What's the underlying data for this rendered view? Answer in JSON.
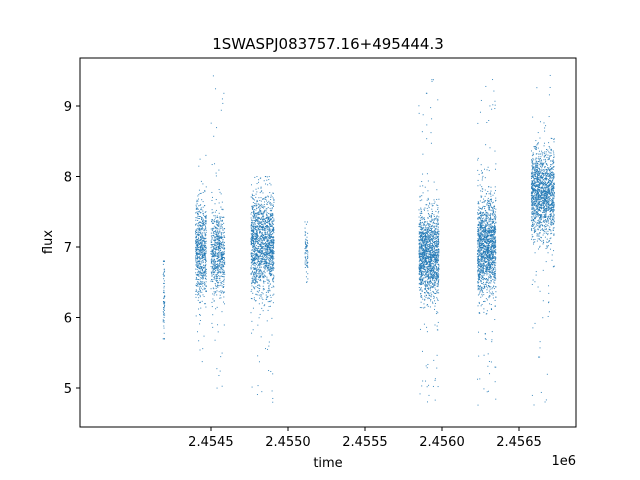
{
  "chart_data": {
    "type": "scatter",
    "title": "1SWASPJ083757.16+495444.3",
    "xlabel": "time",
    "ylabel": "flux",
    "x_offset_label": "1e6",
    "xlim": [
      2.45365,
      2.45687
    ],
    "ylim": [
      4.45,
      9.68
    ],
    "x_ticks": [
      2.4545,
      2.455,
      2.4555,
      2.456,
      2.4565
    ],
    "x_tick_labels": [
      "2.4545",
      "2.4550",
      "2.4555",
      "2.4560",
      "2.4565"
    ],
    "y_ticks": [
      5,
      6,
      7,
      8,
      9
    ],
    "y_tick_labels": [
      "5",
      "6",
      "7",
      "8",
      "9"
    ],
    "grid": false,
    "legend": "none",
    "series_color": "#1f77b4",
    "point_clusters": [
      {
        "x_range": [
          2.45419,
          2.4542
        ],
        "y_center": 6.3,
        "y_spread": 0.35,
        "y_min": 5.7,
        "y_max": 6.8,
        "density": "sparse"
      },
      {
        "x_range": [
          2.4544,
          2.45447
        ],
        "y_center": 6.95,
        "y_spread": 0.35,
        "y_min": 5.3,
        "y_max": 8.3,
        "density": "medium"
      },
      {
        "x_range": [
          2.4545,
          2.45459
        ],
        "y_center": 6.9,
        "y_spread": 0.3,
        "y_min": 4.85,
        "y_max": 9.45,
        "density": "medium"
      },
      {
        "x_range": [
          2.45476,
          2.45491
        ],
        "y_center": 7.05,
        "y_spread": 0.35,
        "y_min": 4.8,
        "y_max": 8.0,
        "density": "dense"
      },
      {
        "x_range": [
          2.45511,
          2.45513
        ],
        "y_center": 6.95,
        "y_spread": 0.2,
        "y_min": 6.5,
        "y_max": 7.5,
        "density": "sparse"
      },
      {
        "x_range": [
          2.45585,
          2.45598
        ],
        "y_center": 6.9,
        "y_spread": 0.3,
        "y_min": 4.8,
        "y_max": 9.4,
        "density": "dense"
      },
      {
        "x_range": [
          2.45623,
          2.45635
        ],
        "y_center": 7.0,
        "y_spread": 0.35,
        "y_min": 4.75,
        "y_max": 9.45,
        "density": "dense"
      },
      {
        "x_range": [
          2.45658,
          2.45673
        ],
        "y_center": 7.75,
        "y_spread": 0.3,
        "y_min": 4.75,
        "y_max": 9.45,
        "density": "dense"
      }
    ]
  }
}
